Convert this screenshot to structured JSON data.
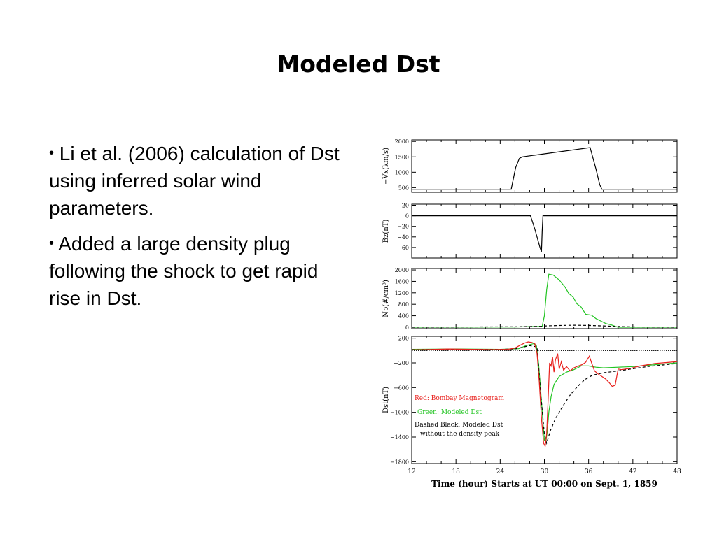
{
  "slide": {
    "title": "Modeled Dst",
    "bullets": [
      {
        "marker": "•",
        "text": "Li et al. (2006) calculation of Dst using inferred solar wind parameters."
      },
      {
        "marker": "•",
        "text": "Added a large density plug following the shock to get rapid rise in Dst."
      }
    ]
  },
  "colors": {
    "red": "#e8201c",
    "green": "#22c422",
    "black": "#000000"
  },
  "chart_data": {
    "type": "line",
    "xlabel": "Time (hour) Starts at UT 00:00 on Sept. 1, 1859",
    "xlim": [
      12,
      48
    ],
    "xticks": [
      "12",
      "18",
      "24",
      "30",
      "36",
      "42",
      "48"
    ],
    "panels": [
      {
        "ylabel": "−Vx(km/s)",
        "ylim": [
          350,
          2050
        ],
        "yticks": [
          "500",
          "1000",
          "1500",
          "2000"
        ],
        "series": [
          {
            "color": "black",
            "dash": false,
            "points": [
              [
                12,
                450
              ],
              [
                25.5,
                450
              ],
              [
                26.1,
                1150
              ],
              [
                26.6,
                1450
              ],
              [
                27,
                1500
              ],
              [
                36.2,
                1800
              ],
              [
                37,
                1100
              ],
              [
                37.5,
                600
              ],
              [
                37.8,
                450
              ],
              [
                48,
                450
              ]
            ]
          }
        ]
      },
      {
        "ylabel": "Bz(nT)",
        "ylim": [
          -80,
          22
        ],
        "yticks": [
          "20",
          "0",
          "−20",
          "−40",
          "−60"
        ],
        "series": [
          {
            "color": "black",
            "dash": false,
            "points": [
              [
                12,
                0
              ],
              [
                28.1,
                0
              ],
              [
                28.3,
                -8
              ],
              [
                28.7,
                -25
              ],
              [
                29.1,
                -45
              ],
              [
                29.4,
                -60
              ],
              [
                29.6,
                -68
              ],
              [
                29.7,
                -30
              ],
              [
                29.8,
                0
              ],
              [
                48,
                0
              ]
            ]
          }
        ]
      },
      {
        "ylabel": "Np(#/cm³)",
        "ylim": [
          -50,
          2050
        ],
        "yticks": [
          "2000",
          "1600",
          "1200",
          "800",
          "400",
          "0"
        ],
        "series": [
          {
            "color": "green",
            "dash": false,
            "points": [
              [
                12,
                0
              ],
              [
                26,
                5
              ],
              [
                28,
                20
              ],
              [
                29.7,
                25
              ],
              [
                30,
                400
              ],
              [
                30.3,
                1300
              ],
              [
                30.6,
                1850
              ],
              [
                31.2,
                1820
              ],
              [
                32,
                1650
              ],
              [
                32.8,
                1400
              ],
              [
                33.3,
                1180
              ],
              [
                33.9,
                1050
              ],
              [
                34.4,
                820
              ],
              [
                35,
                700
              ],
              [
                35.6,
                450
              ],
              [
                36.4,
                420
              ],
              [
                37,
                300
              ],
              [
                37.6,
                220
              ],
              [
                38.4,
                120
              ],
              [
                39.1,
                80
              ],
              [
                39.6,
                30
              ],
              [
                40,
                0
              ],
              [
                48,
                0
              ]
            ]
          },
          {
            "color": "black",
            "dash": true,
            "points": [
              [
                12,
                0
              ],
              [
                26,
                15
              ],
              [
                29.6,
                30
              ],
              [
                30.2,
                45
              ],
              [
                32,
                60
              ],
              [
                34,
                70
              ],
              [
                36,
                62
              ],
              [
                38,
                45
              ],
              [
                40,
                25
              ],
              [
                42,
                10
              ],
              [
                48,
                0
              ]
            ]
          }
        ]
      },
      {
        "ylabel": "Dst(nT)",
        "ylim": [
          -1830,
          230
        ],
        "yticks": [
          "200",
          "−200",
          "−600",
          "−1000",
          "−1400",
          "−1800"
        ],
        "zero_line": 0,
        "legend": [
          {
            "text": "Red: Bombay Magnetogram",
            "color": "red"
          },
          {
            "text": "Green: Modeled Dst",
            "color": "green"
          },
          {
            "text": "Dashed Black: Modeled Dst",
            "color": "black"
          },
          {
            "text": "without the density peak",
            "color": "black"
          }
        ],
        "series": [
          {
            "color": "green",
            "dash": false,
            "points": [
              [
                12,
                20
              ],
              [
                18,
                25
              ],
              [
                24,
                20
              ],
              [
                26.5,
                30
              ],
              [
                27.5,
                80
              ],
              [
                28.5,
                110
              ],
              [
                28.9,
                90
              ],
              [
                29.2,
                -200
              ],
              [
                29.5,
                -650
              ],
              [
                29.8,
                -1150
              ],
              [
                30,
                -1450
              ],
              [
                30.2,
                -1480
              ],
              [
                30.4,
                -1300
              ],
              [
                30.6,
                -1000
              ],
              [
                30.9,
                -750
              ],
              [
                31.3,
                -550
              ],
              [
                32,
                -420
              ],
              [
                33,
                -350
              ],
              [
                34,
                -310
              ],
              [
                35,
                -250
              ],
              [
                36,
                -250
              ],
              [
                37,
                -270
              ],
              [
                38,
                -280
              ],
              [
                40,
                -270
              ],
              [
                42,
                -260
              ],
              [
                44,
                -240
              ],
              [
                46,
                -220
              ],
              [
                48,
                -200
              ]
            ]
          },
          {
            "color": "black",
            "dash": true,
            "points": [
              [
                12,
                15
              ],
              [
                18,
                20
              ],
              [
                24,
                18
              ],
              [
                26,
                25
              ],
              [
                28,
                80
              ],
              [
                29,
                60
              ],
              [
                29.5,
                -700
              ],
              [
                30,
                -1350
              ],
              [
                30.3,
                -1500
              ],
              [
                30.8,
                -1300
              ],
              [
                31.5,
                -1100
              ],
              [
                32.5,
                -900
              ],
              [
                33.5,
                -720
              ],
              [
                34.5,
                -580
              ],
              [
                35.5,
                -470
              ],
              [
                36.5,
                -400
              ],
              [
                38,
                -360
              ],
              [
                40,
                -330
              ],
              [
                44,
                -260
              ],
              [
                48,
                -210
              ]
            ]
          },
          {
            "color": "red",
            "dash": false,
            "points": [
              [
                12,
                10
              ],
              [
                14,
                15
              ],
              [
                17,
                25
              ],
              [
                20,
                20
              ],
              [
                23,
                15
              ],
              [
                25,
                20
              ],
              [
                26,
                40
              ],
              [
                26.6,
                80
              ],
              [
                27.3,
                120
              ],
              [
                27.8,
                140
              ],
              [
                28.3,
                130
              ],
              [
                28.7,
                110
              ],
              [
                29,
                -50
              ],
              [
                29.3,
                -500
              ],
              [
                29.6,
                -1100
              ],
              [
                29.9,
                -1500
              ],
              [
                30.1,
                -1550
              ],
              [
                30.3,
                -1350
              ],
              [
                30.5,
                -800
              ],
              [
                30.7,
                -200
              ],
              [
                30.9,
                -250
              ],
              [
                31.1,
                -100
              ],
              [
                31.3,
                -350
              ],
              [
                31.5,
                -150
              ],
              [
                31.8,
                -50
              ],
              [
                32,
                -300
              ],
              [
                32.3,
                -180
              ],
              [
                32.6,
                -320
              ],
              [
                33,
                -260
              ],
              [
                33.5,
                -330
              ],
              [
                34,
                -280
              ],
              [
                34.6,
                -250
              ],
              [
                35.1,
                -230
              ],
              [
                35.6,
                -190
              ],
              [
                36.1,
                -90
              ],
              [
                36.4,
                -200
              ],
              [
                36.8,
                -330
              ],
              [
                37.3,
                -380
              ],
              [
                37.8,
                -420
              ],
              [
                38.3,
                -460
              ],
              [
                38.8,
                -520
              ],
              [
                39.2,
                -580
              ],
              [
                39.6,
                -560
              ],
              [
                40,
                -300
              ],
              [
                40.5,
                -310
              ],
              [
                41,
                -300
              ],
              [
                41.6,
                -290
              ],
              [
                42.3,
                -270
              ],
              [
                43,
                -250
              ],
              [
                44,
                -230
              ],
              [
                45,
                -210
              ],
              [
                46,
                -200
              ],
              [
                47,
                -190
              ],
              [
                48,
                -180
              ]
            ]
          }
        ]
      }
    ]
  }
}
